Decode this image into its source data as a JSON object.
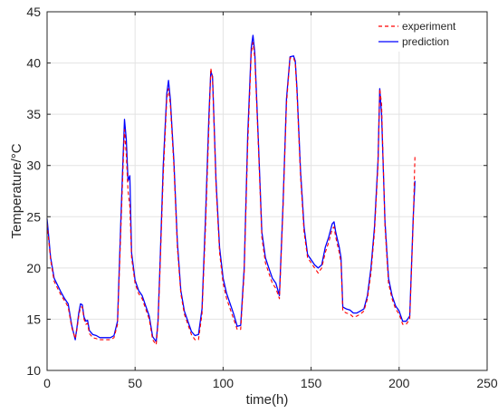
{
  "chart_data": {
    "type": "line",
    "xlabel": "time(h)",
    "ylabel": "Temperature/°C",
    "xlim": [
      0,
      250
    ],
    "ylim": [
      10,
      45
    ],
    "xticks": [
      0,
      50,
      100,
      150,
      200,
      250
    ],
    "yticks": [
      10,
      15,
      20,
      25,
      30,
      35,
      40,
      45
    ],
    "grid": true,
    "legend_position": "top-right",
    "colors": {
      "experiment": "#ff0000",
      "prediction": "#0000ff"
    },
    "series": [
      {
        "name": "experiment",
        "style": "dashed",
        "x": [
          0,
          2,
          4,
          6,
          8,
          10,
          12,
          14,
          16,
          17,
          18,
          19,
          20,
          21,
          22,
          23,
          24,
          26,
          28,
          30,
          32,
          34,
          36,
          38,
          40,
          42,
          43,
          44,
          45,
          46,
          47,
          48,
          50,
          52,
          54,
          56,
          58,
          60,
          62,
          63,
          64,
          66,
          68,
          69,
          70,
          72,
          74,
          76,
          78,
          80,
          82,
          84,
          86,
          88,
          90,
          92,
          93,
          94,
          96,
          98,
          100,
          102,
          104,
          106,
          108,
          110,
          112,
          114,
          116,
          117,
          118,
          120,
          122,
          124,
          126,
          128,
          130,
          132,
          134,
          136,
          138,
          140,
          141,
          142,
          144,
          146,
          148,
          150,
          152,
          154,
          156,
          158,
          160,
          162,
          163,
          164,
          166,
          167,
          168,
          170,
          172,
          174,
          176,
          178,
          180,
          182,
          184,
          186,
          188,
          189,
          190,
          192,
          194,
          196,
          198,
          200,
          202,
          204,
          206,
          208,
          209
        ],
        "y": [
          24.3,
          20.8,
          18.7,
          18.0,
          17.3,
          16.8,
          16.2,
          14.2,
          13.1,
          14.0,
          15.3,
          16.2,
          16.2,
          15.0,
          14.5,
          14.6,
          13.6,
          13.2,
          13.1,
          13.0,
          13.0,
          13.0,
          13.0,
          13.2,
          14.5,
          24.0,
          29.0,
          33.5,
          31.0,
          27.5,
          26.0,
          21.0,
          18.5,
          17.5,
          17.0,
          16.0,
          15.0,
          13.0,
          12.5,
          14.5,
          19.0,
          29.0,
          36.5,
          37.5,
          36.0,
          30.0,
          22.0,
          17.5,
          15.5,
          14.5,
          13.5,
          13.0,
          13.0,
          15.5,
          24.0,
          34.0,
          39.5,
          38.5,
          28.0,
          21.5,
          18.5,
          17.0,
          16.0,
          15.0,
          14.0,
          14.0,
          19.5,
          32.0,
          41.0,
          42.0,
          40.5,
          32.0,
          23.0,
          20.5,
          19.5,
          18.5,
          18.0,
          17.0,
          25.5,
          36.0,
          40.5,
          40.5,
          40.0,
          37.0,
          29.0,
          23.5,
          21.0,
          20.5,
          20.0,
          19.5,
          20.0,
          21.5,
          22.5,
          23.8,
          24.0,
          23.0,
          21.5,
          20.5,
          15.8,
          15.6,
          15.5,
          15.2,
          15.3,
          15.5,
          15.8,
          17.0,
          19.5,
          23.5,
          30.0,
          37.5,
          36.0,
          24.0,
          18.5,
          17.0,
          16.0,
          15.5,
          14.5,
          14.5,
          15.0,
          24.5,
          31.0
        ]
      },
      {
        "name": "prediction",
        "style": "solid",
        "x": [
          0,
          2,
          4,
          6,
          8,
          10,
          12,
          14,
          16,
          17,
          18,
          19,
          20,
          21,
          22,
          23,
          24,
          26,
          28,
          30,
          32,
          34,
          36,
          38,
          40,
          42,
          43,
          44,
          45,
          46,
          47,
          48,
          50,
          52,
          54,
          56,
          58,
          60,
          62,
          63,
          64,
          66,
          68,
          69,
          70,
          72,
          74,
          76,
          78,
          80,
          82,
          84,
          86,
          88,
          90,
          92,
          93,
          94,
          96,
          98,
          100,
          102,
          104,
          106,
          108,
          110,
          112,
          114,
          116,
          117,
          118,
          120,
          122,
          124,
          126,
          128,
          130,
          132,
          134,
          136,
          138,
          140,
          141,
          142,
          144,
          146,
          148,
          150,
          152,
          154,
          156,
          158,
          160,
          162,
          163,
          164,
          166,
          167,
          168,
          170,
          172,
          174,
          176,
          178,
          180,
          182,
          184,
          186,
          188,
          189,
          190,
          192,
          194,
          196,
          198,
          200,
          202,
          204,
          206,
          208,
          209
        ],
        "y": [
          24.8,
          21.0,
          19.0,
          18.3,
          17.6,
          17.0,
          16.5,
          14.4,
          13.0,
          14.2,
          15.6,
          16.5,
          16.4,
          15.2,
          14.8,
          14.9,
          13.9,
          13.5,
          13.4,
          13.2,
          13.2,
          13.2,
          13.2,
          13.4,
          14.8,
          25.0,
          30.0,
          34.5,
          32.5,
          28.5,
          29.0,
          21.5,
          18.8,
          17.8,
          17.3,
          16.3,
          15.3,
          13.3,
          12.8,
          14.8,
          19.5,
          30.0,
          37.0,
          38.3,
          36.5,
          30.5,
          22.5,
          17.8,
          15.8,
          14.8,
          13.8,
          13.4,
          13.5,
          16.0,
          25.0,
          35.0,
          39.2,
          38.7,
          28.5,
          22.0,
          19.0,
          17.5,
          16.5,
          15.5,
          14.3,
          14.4,
          20.0,
          33.0,
          41.5,
          42.7,
          41.0,
          32.5,
          23.5,
          21.0,
          20.0,
          19.0,
          18.5,
          17.3,
          26.0,
          36.5,
          40.6,
          40.7,
          40.2,
          37.5,
          29.5,
          24.0,
          21.3,
          20.8,
          20.3,
          20.0,
          20.3,
          22.0,
          23.0,
          24.3,
          24.5,
          23.5,
          22.0,
          21.0,
          16.2,
          16.0,
          15.9,
          15.6,
          15.6,
          15.8,
          16.0,
          17.3,
          20.0,
          24.0,
          30.5,
          37.5,
          35.0,
          24.5,
          19.0,
          17.3,
          16.3,
          15.8,
          14.8,
          14.8,
          15.3,
          25.0,
          28.5
        ]
      }
    ]
  }
}
